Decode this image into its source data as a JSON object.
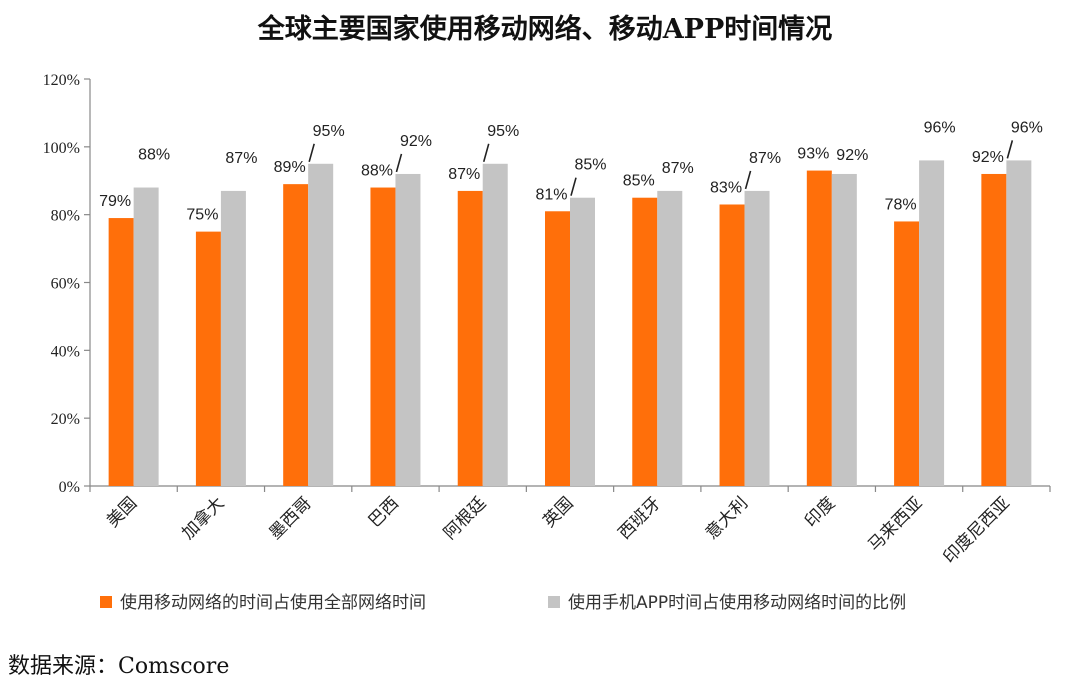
{
  "chart_data": {
    "type": "bar",
    "title": "全球主要国家使用移动网络、移动APP时间情况",
    "categories": [
      "美国",
      "加拿大",
      "墨西哥",
      "巴西",
      "阿根廷",
      "英国",
      "西班牙",
      "意大利",
      "印度",
      "马来西亚",
      "印度尼西亚"
    ],
    "series": [
      {
        "name": "使用移动网络的时间占使用全部网络时间",
        "color": "#FF6F0A",
        "values": [
          79,
          75,
          89,
          88,
          87,
          81,
          85,
          83,
          93,
          78,
          92
        ],
        "labels": [
          "79%",
          "75%",
          "89%",
          "88%",
          "87%",
          "81%",
          "85%",
          "83%",
          "93%",
          "78%",
          "92%"
        ]
      },
      {
        "name": "使用手机APP时间占使用移动网络时间的比例",
        "color": "#C4C4C4",
        "values": [
          88,
          87,
          95,
          92,
          95,
          85,
          87,
          87,
          92,
          96,
          96
        ],
        "labels": [
          "88%",
          "87%",
          "95%",
          "92%",
          "95%",
          "85%",
          "87%",
          "87%",
          "92%",
          "96%",
          "96%"
        ]
      }
    ],
    "ylim": [
      0,
      120
    ],
    "yticks": [
      0,
      20,
      40,
      60,
      80,
      100,
      120
    ],
    "ytick_labels": [
      "0%",
      "20%",
      "40%",
      "60%",
      "80%",
      "100%",
      "120%"
    ],
    "xlabel": "",
    "ylabel": "",
    "grid": false,
    "legend_position": "bottom"
  },
  "source": "数据来源：Comscore"
}
